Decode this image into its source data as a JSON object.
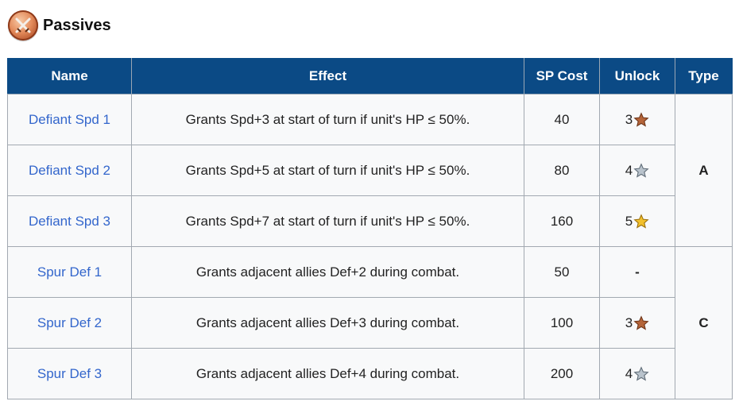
{
  "section": {
    "title": "Passives",
    "icon": "crossed-swords-icon"
  },
  "table": {
    "headers": {
      "name": "Name",
      "effect": "Effect",
      "sp_cost": "SP Cost",
      "unlock": "Unlock",
      "type": "Type"
    },
    "rows": [
      {
        "name": "Defiant Spd 1",
        "effect": "Grants Spd+3 at start of turn if unit's HP ≤ 50%.",
        "sp_cost": "40",
        "unlock_level": "3",
        "unlock_star": "bronze"
      },
      {
        "name": "Defiant Spd 2",
        "effect": "Grants Spd+5 at start of turn if unit's HP ≤ 50%.",
        "sp_cost": "80",
        "unlock_level": "4",
        "unlock_star": "silver"
      },
      {
        "name": "Defiant Spd 3",
        "effect": "Grants Spd+7 at start of turn if unit's HP ≤ 50%.",
        "sp_cost": "160",
        "unlock_level": "5",
        "unlock_star": "gold"
      },
      {
        "name": "Spur Def 1",
        "effect": "Grants adjacent allies Def+2 during combat.",
        "sp_cost": "50",
        "unlock_level": "-",
        "unlock_star": ""
      },
      {
        "name": "Spur Def 2",
        "effect": "Grants adjacent allies Def+3 during combat.",
        "sp_cost": "100",
        "unlock_level": "3",
        "unlock_star": "bronze"
      },
      {
        "name": "Spur Def 3",
        "effect": "Grants adjacent allies Def+4 during combat.",
        "sp_cost": "200",
        "unlock_level": "4",
        "unlock_star": "silver"
      }
    ],
    "type_groups": [
      "A",
      "C"
    ]
  },
  "colors": {
    "header_bg": "#0b4a85",
    "link": "#3366cc",
    "cell_bg": "#f8f9fa",
    "star_bronze": "#b5653a",
    "star_silver": "#b9c3cc",
    "star_gold": "#f2c02c"
  }
}
